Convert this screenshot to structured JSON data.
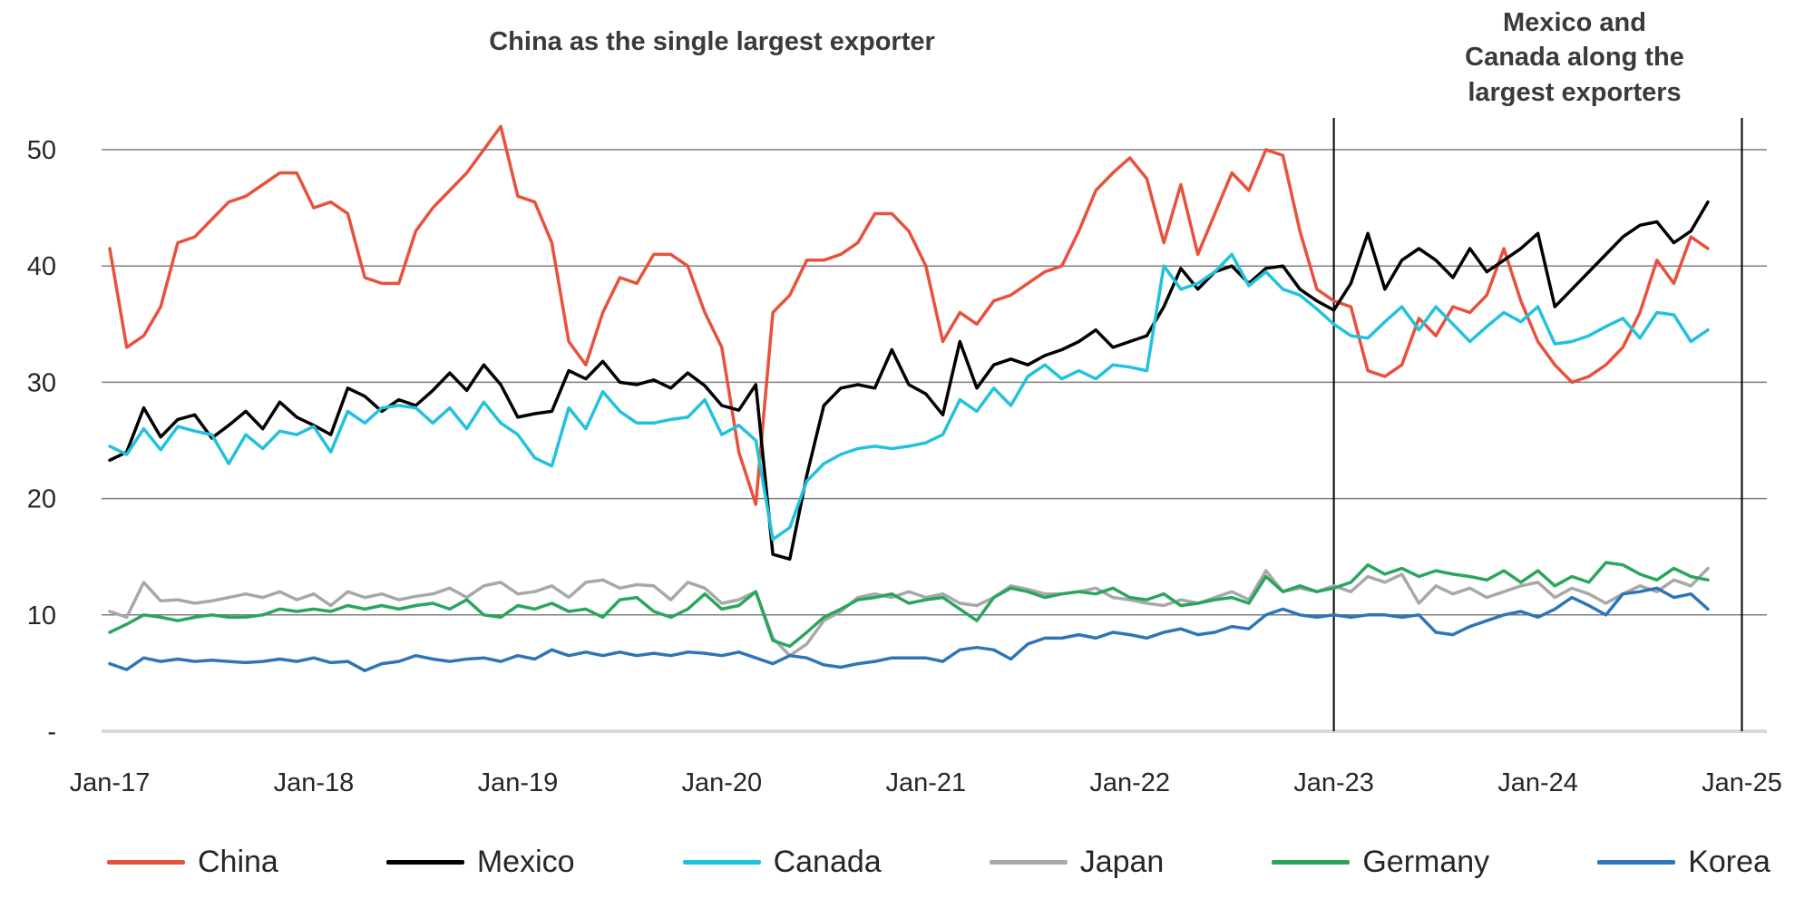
{
  "annotations": {
    "left_title": "China as the single largest exporter",
    "right_title_lines": [
      "Mexico and",
      "Canada along the",
      "largest exporters"
    ]
  },
  "chart_data": {
    "type": "line",
    "x": {
      "start": "Jan-17",
      "end": "Nov-24",
      "interval": "monthly",
      "n_points": 95,
      "tick_labels": [
        "Jan-17",
        "Jan-18",
        "Jan-19",
        "Jan-20",
        "Jan-21",
        "Jan-22",
        "Jan-23",
        "Jan-24",
        "Jan-25"
      ]
    },
    "y_ticks": [
      {
        "value": 0,
        "label": "-"
      },
      {
        "value": 10,
        "label": "10"
      },
      {
        "value": 20,
        "label": "20"
      },
      {
        "value": 30,
        "label": "30"
      },
      {
        "value": 40,
        "label": "40"
      },
      {
        "value": 50,
        "label": "50"
      }
    ],
    "ylim": [
      0,
      53
    ],
    "grid": "horizontal",
    "legend_position": "bottom",
    "vertical_markers": [
      {
        "label": "Jan-23",
        "month_index": 72
      },
      {
        "label": "Jan-25",
        "month_index": 96
      }
    ],
    "colors": {
      "gridline": "#7f7f7f",
      "baseline": "#d9d9d9",
      "marker_line": "#000000"
    },
    "series": [
      {
        "name": "China",
        "color": "#e8513c",
        "values": [
          41.5,
          33,
          34,
          36.5,
          42,
          42.5,
          44,
          45.5,
          46,
          47,
          48,
          48,
          45,
          45.5,
          44.5,
          39,
          38.5,
          38.5,
          43,
          45,
          46.5,
          48,
          50,
          52,
          46,
          45.5,
          42,
          33.5,
          31.5,
          36,
          39,
          38.5,
          41,
          41,
          40,
          36,
          33,
          24,
          19.5,
          36,
          37.5,
          40.5,
          40.5,
          41,
          42,
          44.5,
          44.5,
          43,
          40,
          33.5,
          36,
          35,
          37,
          37.5,
          38.5,
          39.5,
          40,
          43,
          46.5,
          48,
          49.3,
          47.5,
          42,
          47,
          41,
          44.5,
          48,
          46.5,
          50,
          49.5,
          43,
          38,
          37,
          36.5,
          31,
          30.5,
          31.5,
          35.5,
          34,
          36.5,
          36,
          37.5,
          41.5,
          37,
          33.5,
          31.5,
          30,
          30.5,
          31.5,
          33,
          36,
          40.5,
          38.5,
          42.5,
          41.5
        ]
      },
      {
        "name": "Mexico",
        "color": "#000000",
        "values": [
          23.3,
          24,
          27.8,
          25.3,
          26.8,
          27.2,
          25.2,
          26.3,
          27.5,
          26,
          28.3,
          27,
          26.3,
          25.5,
          29.5,
          28.8,
          27.5,
          28.5,
          28,
          29.3,
          30.8,
          29.3,
          31.5,
          29.8,
          27,
          27.3,
          27.5,
          31,
          30.3,
          31.8,
          30,
          29.8,
          30.2,
          29.5,
          30.8,
          29.7,
          28,
          27.6,
          29.8,
          15.2,
          14.8,
          22,
          28,
          29.5,
          29.8,
          29.5,
          32.8,
          29.8,
          29,
          27.2,
          33.5,
          29.5,
          31.5,
          32,
          31.5,
          32.3,
          32.8,
          33.5,
          34.5,
          33,
          33.5,
          34,
          36.5,
          39.8,
          38,
          39.5,
          40,
          38.5,
          39.8,
          40,
          38,
          37,
          36.2,
          38.5,
          42.8,
          38,
          40.5,
          41.5,
          40.5,
          39,
          41.5,
          39.5,
          40.5,
          41.5,
          42.8,
          36.5,
          38,
          39.5,
          41,
          42.5,
          43.5,
          43.8,
          42,
          43,
          45.5
        ]
      },
      {
        "name": "Canada",
        "color": "#22c2dc",
        "values": [
          24.5,
          23.8,
          26,
          24.2,
          26.2,
          25.8,
          25.5,
          23,
          25.5,
          24.3,
          25.8,
          25.5,
          26.2,
          24,
          27.5,
          26.5,
          27.8,
          28,
          27.8,
          26.5,
          27.8,
          26,
          28.3,
          26.5,
          25.5,
          23.5,
          22.8,
          27.8,
          26,
          29.2,
          27.5,
          26.5,
          26.5,
          26.8,
          27,
          28.5,
          25.5,
          26.3,
          25,
          16.5,
          17.5,
          21.5,
          23,
          23.8,
          24.3,
          24.5,
          24.3,
          24.5,
          24.8,
          25.5,
          28.5,
          27.5,
          29.5,
          28,
          30.5,
          31.5,
          30.3,
          31,
          30.3,
          31.5,
          31.3,
          31,
          40,
          38,
          38.5,
          39.5,
          41,
          38.3,
          39.5,
          38,
          37.5,
          36.3,
          35,
          34,
          33.8,
          35.2,
          36.5,
          34.5,
          36.5,
          35,
          33.5,
          34.8,
          36,
          35.2,
          36.5,
          33.3,
          33.5,
          34,
          34.8,
          35.5,
          33.8,
          36,
          35.8,
          33.5,
          34.5
        ]
      },
      {
        "name": "Japan",
        "color": "#a8a8a8",
        "values": [
          10.3,
          9.8,
          12.8,
          11.2,
          11.3,
          11,
          11.2,
          11.5,
          11.8,
          11.5,
          12,
          11.3,
          11.8,
          10.8,
          12,
          11.5,
          11.8,
          11.3,
          11.6,
          11.8,
          12.3,
          11.5,
          12.5,
          12.8,
          11.8,
          12,
          12.5,
          11.5,
          12.8,
          13,
          12.3,
          12.6,
          12.5,
          11.3,
          12.8,
          12.3,
          11,
          11.3,
          12,
          8,
          6.5,
          7.5,
          9.5,
          10.3,
          11.5,
          11.8,
          11.5,
          12,
          11.5,
          11.8,
          11,
          10.8,
          11.5,
          12.5,
          12.2,
          11.8,
          11.8,
          12,
          12.3,
          11.5,
          11.3,
          11,
          10.8,
          11.3,
          11,
          11.5,
          12,
          11.3,
          13.8,
          12,
          12.3,
          12,
          12.5,
          12,
          13.3,
          12.8,
          13.5,
          11,
          12.5,
          11.8,
          12.3,
          11.5,
          12,
          12.5,
          12.8,
          11.5,
          12.3,
          11.8,
          11,
          11.8,
          12.5,
          12,
          13,
          12.5,
          14
        ]
      },
      {
        "name": "Germany",
        "color": "#2aa65c",
        "values": [
          8.5,
          9.2,
          10,
          9.8,
          9.5,
          9.8,
          10,
          9.8,
          9.8,
          10,
          10.5,
          10.3,
          10.5,
          10.3,
          10.8,
          10.5,
          10.8,
          10.5,
          10.8,
          11,
          10.5,
          11.3,
          10,
          9.8,
          10.8,
          10.5,
          11,
          10.3,
          10.5,
          9.8,
          11.3,
          11.5,
          10.3,
          9.8,
          10.5,
          11.8,
          10.5,
          10.8,
          12,
          7.8,
          7.3,
          8.5,
          9.8,
          10.5,
          11.3,
          11.5,
          11.8,
          11,
          11.3,
          11.5,
          10.5,
          9.5,
          11.5,
          12.3,
          12,
          11.5,
          11.8,
          12,
          11.8,
          12.3,
          11.5,
          11.3,
          11.8,
          10.8,
          11,
          11.3,
          11.5,
          11,
          13.3,
          12,
          12.5,
          12,
          12.3,
          12.8,
          14.3,
          13.5,
          14,
          13.3,
          13.8,
          13.5,
          13.3,
          13,
          13.8,
          12.8,
          13.8,
          12.5,
          13.3,
          12.8,
          14.5,
          14.3,
          13.5,
          13,
          14,
          13.3,
          13
        ]
      },
      {
        "name": "Korea",
        "color": "#2e75b6",
        "values": [
          5.8,
          5.3,
          6.3,
          6,
          6.2,
          6,
          6.1,
          6,
          5.9,
          6,
          6.2,
          6,
          6.3,
          5.9,
          6,
          5.2,
          5.8,
          6,
          6.5,
          6.2,
          6,
          6.2,
          6.3,
          6,
          6.5,
          6.2,
          7,
          6.5,
          6.8,
          6.5,
          6.8,
          6.5,
          6.7,
          6.5,
          6.8,
          6.7,
          6.5,
          6.8,
          6.3,
          5.8,
          6.5,
          6.3,
          5.7,
          5.5,
          5.8,
          6,
          6.3,
          6.3,
          6.3,
          6,
          7,
          7.2,
          7,
          6.2,
          7.5,
          8,
          8,
          8.3,
          8,
          8.5,
          8.3,
          8,
          8.5,
          8.8,
          8.3,
          8.5,
          9,
          8.8,
          10,
          10.5,
          10,
          9.8,
          10,
          9.8,
          10,
          10,
          9.8,
          10,
          8.5,
          8.3,
          9,
          9.5,
          10,
          10.3,
          9.8,
          10.5,
          11.5,
          10.8,
          10,
          11.8,
          12,
          12.3,
          11.5,
          11.8,
          10.5
        ]
      }
    ]
  }
}
